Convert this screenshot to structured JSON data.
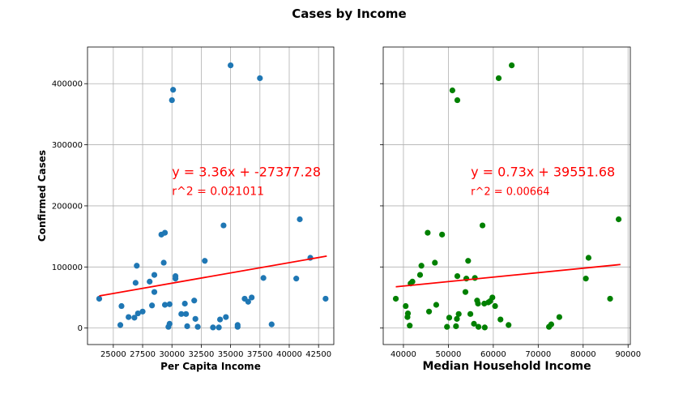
{
  "title": "Cases by Income",
  "chart_data": [
    {
      "type": "scatter",
      "xlabel": "Per Capita Income",
      "ylabel": "Confirmed Cases",
      "xlim": [
        22800,
        43800
      ],
      "ylim": [
        -27000,
        460000
      ],
      "xticks": [
        25000,
        27500,
        30000,
        32500,
        35000,
        37500,
        40000,
        42500
      ],
      "xtick_labels": [
        "25000",
        "27500",
        "30000",
        "32500",
        "35000",
        "37500",
        "40000",
        "42500"
      ],
      "yticks": [
        0,
        100000,
        200000,
        300000,
        400000
      ],
      "ytick_labels": [
        "0",
        "100000",
        "200000",
        "300000",
        "400000"
      ],
      "grid": true,
      "point_color": "#1f77b4",
      "line_color": "#ff0000",
      "fit": {
        "slope": 3.36,
        "intercept": -27377.28,
        "x_range": [
          23800,
          43200
        ]
      },
      "equation": "y = 3.36x + -27377.28",
      "r2": "r^2 = 0.021011",
      "annotation_pos": [
        30000,
        230000
      ],
      "points": [
        [
          23800,
          48000
        ],
        [
          25600,
          5000
        ],
        [
          25700,
          36000
        ],
        [
          26300,
          18000
        ],
        [
          26800,
          17000
        ],
        [
          26900,
          74000
        ],
        [
          27000,
          102000
        ],
        [
          27100,
          24000
        ],
        [
          27500,
          27000
        ],
        [
          28100,
          76000
        ],
        [
          28300,
          37000
        ],
        [
          28500,
          59000
        ],
        [
          28500,
          87000
        ],
        [
          29100,
          153000
        ],
        [
          29300,
          107000
        ],
        [
          29400,
          156000
        ],
        [
          29400,
          38000
        ],
        [
          29700,
          2000
        ],
        [
          29800,
          39000
        ],
        [
          29800,
          7000
        ],
        [
          30000,
          373000
        ],
        [
          30100,
          390000
        ],
        [
          30300,
          81000
        ],
        [
          30300,
          85000
        ],
        [
          30800,
          23000
        ],
        [
          31100,
          40000
        ],
        [
          31200,
          23000
        ],
        [
          31300,
          3000
        ],
        [
          31900,
          45000
        ],
        [
          32000,
          15000
        ],
        [
          32200,
          2000
        ],
        [
          32800,
          110000
        ],
        [
          33500,
          1000
        ],
        [
          34000,
          1000
        ],
        [
          34100,
          14000
        ],
        [
          34400,
          168000
        ],
        [
          34600,
          18000
        ],
        [
          35000,
          430000
        ],
        [
          35600,
          5000
        ],
        [
          35600,
          2000
        ],
        [
          36200,
          48000
        ],
        [
          36500,
          43000
        ],
        [
          36800,
          50000
        ],
        [
          37500,
          409000
        ],
        [
          37800,
          82000
        ],
        [
          38500,
          6000
        ],
        [
          40600,
          81000
        ],
        [
          40900,
          178000
        ],
        [
          41800,
          115000
        ],
        [
          43100,
          48000
        ]
      ]
    },
    {
      "type": "scatter",
      "xlabel": "Median Household Income",
      "ylabel": "",
      "xlim": [
        35500,
        90500
      ],
      "ylim": [
        -27000,
        460000
      ],
      "xticks": [
        40000,
        50000,
        60000,
        70000,
        80000,
        90000
      ],
      "xtick_labels": [
        "40000",
        "50000",
        "60000",
        "70000",
        "80000",
        "90000"
      ],
      "yticks": [
        0,
        100000,
        200000,
        300000,
        400000
      ],
      "ytick_labels": [],
      "grid": true,
      "point_color": "#008000",
      "line_color": "#ff0000",
      "fit": {
        "slope": 0.73,
        "intercept": 39551.68,
        "x_range": [
          38300,
          88300
        ]
      },
      "equation": "y = 0.73x + 39551.68",
      "r2": "r^2 = 0.00664",
      "annotation_pos": [
        55000,
        230000
      ],
      "points": [
        [
          38300,
          48000
        ],
        [
          40500,
          36000
        ],
        [
          40900,
          18000
        ],
        [
          41000,
          24000
        ],
        [
          41400,
          4000
        ],
        [
          41600,
          73000
        ],
        [
          42000,
          76000
        ],
        [
          43700,
          87000
        ],
        [
          44000,
          102000
        ],
        [
          45400,
          156000
        ],
        [
          45700,
          27000
        ],
        [
          47000,
          107000
        ],
        [
          47300,
          38000
        ],
        [
          48600,
          153000
        ],
        [
          49700,
          2000
        ],
        [
          50200,
          17000
        ],
        [
          50900,
          389000
        ],
        [
          51700,
          3000
        ],
        [
          51900,
          15000
        ],
        [
          52000,
          373000
        ],
        [
          52000,
          85000
        ],
        [
          52300,
          23000
        ],
        [
          53800,
          59000
        ],
        [
          54000,
          81000
        ],
        [
          54400,
          110000
        ],
        [
          54900,
          23000
        ],
        [
          55700,
          7000
        ],
        [
          55900,
          82000
        ],
        [
          56400,
          45000
        ],
        [
          56600,
          40000
        ],
        [
          56700,
          2000
        ],
        [
          57600,
          168000
        ],
        [
          58000,
          40000
        ],
        [
          58100,
          1000
        ],
        [
          58900,
          42000
        ],
        [
          59300,
          44000
        ],
        [
          59800,
          50000
        ],
        [
          60400,
          36000
        ],
        [
          61200,
          409000
        ],
        [
          61600,
          14000
        ],
        [
          63400,
          5000
        ],
        [
          64100,
          430000
        ],
        [
          72400,
          2000
        ],
        [
          72900,
          6000
        ],
        [
          74700,
          18000
        ],
        [
          80600,
          81000
        ],
        [
          81200,
          115000
        ],
        [
          86000,
          48000
        ],
        [
          87900,
          178000
        ]
      ]
    }
  ]
}
